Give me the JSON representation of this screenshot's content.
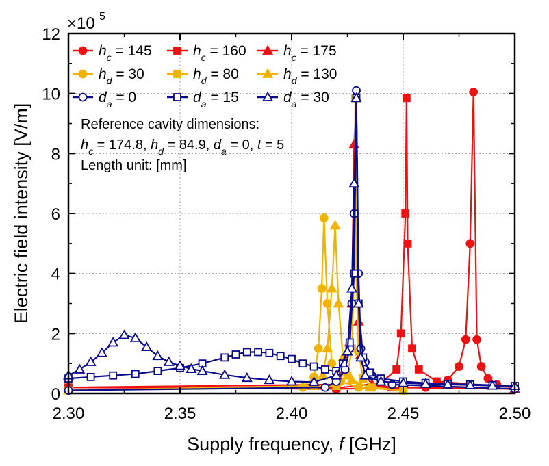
{
  "chart_data": {
    "type": "line",
    "xlabel_prefix": "Supply frequency, ",
    "xlabel_var": "f",
    "xlabel_unit": " [GHz]",
    "ylabel": "Electric field intensity [V/m]",
    "multiplier_base": "×10",
    "multiplier_exp": "5",
    "xlim": [
      2.3,
      2.5
    ],
    "ylim": [
      0,
      12
    ],
    "xticks": [
      "2.30",
      "2.35",
      "2.40",
      "2.45",
      "2.50"
    ],
    "yticks": [
      "0",
      "2",
      "4",
      "6",
      "8",
      "10",
      "12"
    ],
    "grid": true,
    "legend_position": "top-left",
    "annotations": [
      "Reference cavity dimensions:",
      "h_c = 174.8, h_d = 84.9, d_a = 0, t = 5",
      "Length unit: [mm]"
    ],
    "annotation_parts": {
      "line1": "Reference cavity dimensions:",
      "l2_hc_label": "h",
      "l2_hc_sub": "c",
      "l2_hc_val": " = 174.8, ",
      "l2_hd_label": "h",
      "l2_hd_sub": "d",
      "l2_hd_val": " = 84.9, ",
      "l2_da_label": "d",
      "l2_da_sub": "a",
      "l2_da_val": " = 0, ",
      "l2_t_label": "t",
      "l2_t_val": " = 5",
      "line3": "Length unit: [mm]"
    },
    "series": [
      {
        "name": "h_c = 145",
        "var": "h",
        "sub": "c",
        "val": " = 145",
        "color": "#ee1111",
        "marker": "circle",
        "filled": true,
        "x": [
          2.3,
          2.42,
          2.46,
          2.47,
          2.475,
          2.478,
          2.48,
          2.4815,
          2.483,
          2.485,
          2.488,
          2.492,
          2.5
        ],
        "y": [
          0.2,
          0.15,
          0.2,
          0.45,
          0.9,
          1.8,
          5.0,
          10.05,
          1.8,
          0.9,
          0.5,
          0.3,
          0.2
        ]
      },
      {
        "name": "h_c = 160",
        "var": "h",
        "sub": "c",
        "val": " = 160",
        "color": "#ee1111",
        "marker": "square",
        "filled": true,
        "x": [
          2.3,
          2.42,
          2.44,
          2.447,
          2.449,
          2.451,
          2.4515,
          2.452,
          2.454,
          2.457,
          2.465,
          2.5
        ],
        "y": [
          0.2,
          0.18,
          0.35,
          0.8,
          2.0,
          6.0,
          9.85,
          5.0,
          1.5,
          0.8,
          0.4,
          0.2
        ]
      },
      {
        "name": "h_c = 175",
        "var": "h",
        "sub": "c",
        "val": " = 175",
        "color": "#ee1111",
        "marker": "triangle",
        "filled": true,
        "x": [
          2.3,
          2.42,
          2.424,
          2.426,
          2.427,
          2.428,
          2.429,
          2.43,
          2.431,
          2.433,
          2.436,
          2.445,
          2.5
        ],
        "y": [
          0.2,
          0.3,
          0.8,
          1.7,
          3.0,
          8.3,
          9.85,
          2.4,
          1.3,
          0.6,
          0.3,
          0.2,
          0.15
        ]
      },
      {
        "name": "h_d = 30",
        "var": "h",
        "sub": "d",
        "val": " = 30",
        "color": "#f0b400",
        "marker": "circle",
        "filled": true,
        "x": [
          2.3,
          2.405,
          2.41,
          2.412,
          2.4135,
          2.4145,
          2.416,
          2.418,
          2.422,
          2.43,
          2.45
        ],
        "y": [
          0.1,
          0.2,
          0.55,
          1.5,
          3.5,
          5.85,
          3.0,
          1.0,
          0.4,
          0.2,
          0.1
        ]
      },
      {
        "name": "h_d = 80",
        "var": "h",
        "sub": "d",
        "val": " = 80",
        "color": "#f0b400",
        "marker": "square",
        "filled": true,
        "x": [
          2.3,
          2.42,
          2.425,
          2.427,
          2.428,
          2.4285,
          2.429,
          2.43,
          2.432,
          2.436,
          2.45
        ],
        "y": [
          0.1,
          0.25,
          0.6,
          1.5,
          4.0,
          9.85,
          4.0,
          1.4,
          0.5,
          0.2,
          0.1
        ]
      },
      {
        "name": "h_d = 130",
        "var": "h",
        "sub": "d",
        "val": " = 130",
        "color": "#f0b400",
        "marker": "triangle",
        "filled": true,
        "x": [
          2.3,
          2.41,
          2.414,
          2.416,
          2.418,
          2.4195,
          2.421,
          2.423,
          2.427,
          2.435,
          2.45
        ],
        "y": [
          0.1,
          0.25,
          0.6,
          1.5,
          3.5,
          5.6,
          3.0,
          1.2,
          0.45,
          0.2,
          0.1
        ]
      },
      {
        "name": "d_a = 0",
        "var": "d",
        "sub": "a",
        "val": " = 0",
        "color": "#0a0a8c",
        "marker": "circle",
        "filled": false,
        "x": [
          2.3,
          2.415,
          2.42,
          2.424,
          2.426,
          2.427,
          2.428,
          2.429,
          2.43,
          2.431,
          2.433,
          2.436,
          2.445,
          2.5
        ],
        "y": [
          0.1,
          0.2,
          0.4,
          0.8,
          1.5,
          3.0,
          6.0,
          10.1,
          4.0,
          1.5,
          1.05,
          0.6,
          0.3,
          0.15
        ]
      },
      {
        "name": "d_a = 15",
        "var": "d",
        "sub": "a",
        "val": " = 15",
        "color": "#0a0a8c",
        "marker": "square",
        "filled": false,
        "x": [
          2.3,
          2.31,
          2.32,
          2.33,
          2.34,
          2.35,
          2.36,
          2.37,
          2.375,
          2.38,
          2.385,
          2.39,
          2.395,
          2.4,
          2.405,
          2.41,
          2.415,
          2.42,
          2.423,
          2.426,
          2.428,
          2.429,
          2.43,
          2.432,
          2.435,
          2.44,
          2.45,
          2.46,
          2.47,
          2.48,
          2.49,
          2.5
        ],
        "y": [
          0.5,
          0.55,
          0.6,
          0.65,
          0.75,
          0.85,
          1.0,
          1.2,
          1.3,
          1.38,
          1.38,
          1.35,
          1.25,
          1.15,
          1.0,
          0.9,
          0.8,
          0.75,
          1.0,
          1.7,
          4.0,
          9.85,
          3.0,
          1.2,
          0.7,
          0.5,
          0.4,
          0.35,
          0.32,
          0.3,
          0.28,
          0.25
        ]
      },
      {
        "name": "d_a = 30",
        "var": "d",
        "sub": "a",
        "val": " = 30",
        "color": "#0a0a8c",
        "marker": "triangle",
        "filled": false,
        "x": [
          2.3,
          2.305,
          2.31,
          2.315,
          2.32,
          2.325,
          2.33,
          2.335,
          2.34,
          2.345,
          2.35,
          2.355,
          2.36,
          2.37,
          2.38,
          2.39,
          2.4,
          2.41,
          2.42,
          2.425,
          2.427,
          2.428,
          2.429,
          2.43,
          2.431,
          2.433,
          2.44,
          2.45,
          2.46,
          2.47,
          2.48,
          2.49,
          2.5
        ],
        "y": [
          0.6,
          0.8,
          1.05,
          1.35,
          1.7,
          1.95,
          1.85,
          1.55,
          1.25,
          1.05,
          0.92,
          0.82,
          0.75,
          0.62,
          0.52,
          0.45,
          0.4,
          0.38,
          0.6,
          1.4,
          3.5,
          7.0,
          9.85,
          3.0,
          1.2,
          0.6,
          0.4,
          0.35,
          0.32,
          0.3,
          0.28,
          0.26,
          0.25
        ]
      }
    ]
  }
}
